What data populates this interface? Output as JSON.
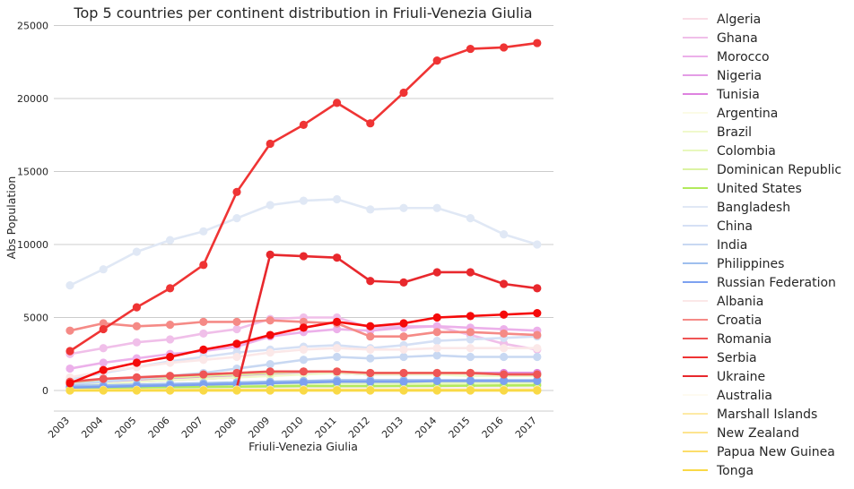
{
  "chart_data": {
    "type": "line",
    "title": "Top 5 countries per continent distribution in Friuli-Venezia Giulia",
    "xlabel": "Friuli-Venezia Giulia",
    "ylabel": "Abs Population",
    "ylim": [
      -1400,
      25000
    ],
    "yticks": [
      0,
      5000,
      10000,
      15000,
      20000,
      25000
    ],
    "grid": "horizontal",
    "legend_position": "right",
    "categories": [
      "2003",
      "2004",
      "2005",
      "2006",
      "2007",
      "2008",
      "2009",
      "2010",
      "2011",
      "2012",
      "2013",
      "2014",
      "2015",
      "2016",
      "2017"
    ],
    "series": [
      {
        "name": "Algeria",
        "color": "#f9dde6",
        "values": [
          60,
          70,
          80,
          90,
          100,
          110,
          120,
          130,
          140,
          130,
          130,
          140,
          140,
          140,
          140
        ]
      },
      {
        "name": "Ghana",
        "color": "#f0bfe9",
        "values": [
          2500,
          2900,
          3300,
          3500,
          3900,
          4200,
          4900,
          5000,
          5000,
          4300,
          4400,
          4400,
          3800,
          3200,
          2800
        ]
      },
      {
        "name": "Morocco",
        "color": "#ecb0ea",
        "values": [
          1500,
          1900,
          2200,
          2500,
          2700,
          3000,
          3700,
          4000,
          4200,
          4100,
          4300,
          4400,
          4300,
          4200,
          4100
        ]
      },
      {
        "name": "Nigeria",
        "color": "#e49de6",
        "values": [
          400,
          500,
          600,
          700,
          800,
          900,
          1100,
          1200,
          1200,
          1100,
          1100,
          1100,
          1100,
          1100,
          1100
        ]
      },
      {
        "name": "Tunisia",
        "color": "#de82e0",
        "values": [
          300,
          500,
          650,
          800,
          900,
          1000,
          1200,
          1300,
          1200,
          1100,
          1100,
          1200,
          1200,
          1200,
          1200
        ]
      },
      {
        "name": "Argentina",
        "color": "#fbfbe6",
        "values": [
          100,
          150,
          200,
          250,
          300,
          350,
          400,
          400,
          400,
          400,
          400,
          400,
          400,
          400,
          400
        ]
      },
      {
        "name": "Brazil",
        "color": "#f0f9cc",
        "values": [
          300,
          450,
          600,
          700,
          800,
          900,
          1000,
          1100,
          1200,
          1100,
          1100,
          1100,
          1000,
          1000,
          1000
        ]
      },
      {
        "name": "Colombia",
        "color": "#e8f8bd",
        "values": [
          100,
          150,
          200,
          250,
          300,
          350,
          400,
          450,
          500,
          500,
          500,
          500,
          500,
          500,
          500
        ]
      },
      {
        "name": "Dominican Republic",
        "color": "#dbf3a3",
        "values": [
          500,
          700,
          800,
          900,
          1000,
          1100,
          1200,
          1300,
          1300,
          1200,
          1200,
          1200,
          1200,
          1100,
          1100
        ]
      },
      {
        "name": "United States",
        "color": "#b2ea5c",
        "values": [
          150,
          180,
          200,
          220,
          240,
          260,
          280,
          300,
          300,
          300,
          310,
          320,
          330,
          340,
          350
        ]
      },
      {
        "name": "Bangladesh",
        "color": "#e0e8f5",
        "values": [
          7200,
          8300,
          9500,
          10300,
          10900,
          11800,
          12700,
          13000,
          13100,
          12400,
          12500,
          12500,
          11800,
          10700,
          10000
        ]
      },
      {
        "name": "China",
        "color": "#d5e0f5",
        "values": [
          800,
          1200,
          1600,
          2000,
          2300,
          2600,
          2800,
          3000,
          3100,
          2900,
          3100,
          3400,
          3500,
          3600,
          3700
        ]
      },
      {
        "name": "India",
        "color": "#c8d8f2",
        "values": [
          400,
          600,
          800,
          1000,
          1200,
          1500,
          1800,
          2100,
          2300,
          2200,
          2300,
          2400,
          2300,
          2300,
          2300
        ]
      },
      {
        "name": "Philippines",
        "color": "#9fbfee",
        "values": [
          300,
          350,
          400,
          450,
          500,
          550,
          600,
          650,
          700,
          700,
          700,
          700,
          700,
          700,
          700
        ]
      },
      {
        "name": "Russian Federation",
        "color": "#7da1f0",
        "values": [
          200,
          250,
          300,
          350,
          400,
          450,
          500,
          550,
          600,
          600,
          600,
          650,
          650,
          650,
          650
        ]
      },
      {
        "name": "Albania",
        "color": "#fbe8e8",
        "values": [
          900,
          1300,
          1600,
          1900,
          2100,
          2300,
          2600,
          2800,
          2900,
          2800,
          2800,
          2900,
          2900,
          2900,
          2900
        ]
      },
      {
        "name": "Croatia",
        "color": "#f58a86",
        "values": [
          4100,
          4600,
          4400,
          4500,
          4700,
          4700,
          4800,
          4700,
          4600,
          3700,
          3700,
          4000,
          4000,
          3900,
          3800
        ]
      },
      {
        "name": "Romania",
        "color": "#ef5555",
        "values": [
          600,
          800,
          900,
          1000,
          1100,
          1200,
          1300,
          1300,
          1300,
          1200,
          1200,
          1200,
          1200,
          1100,
          1100
        ]
      },
      {
        "name": "Serbia",
        "color": "#ef3434",
        "values": [
          2700,
          4200,
          5700,
          7000,
          8600,
          13600,
          16900,
          18200,
          19700,
          18300,
          20400,
          22600,
          23400,
          23500,
          23800
        ]
      },
      {
        "name": "Ukraine",
        "color": "#e8282d",
        "values": [
          null,
          null,
          null,
          null,
          null,
          200,
          9300,
          9200,
          9100,
          7500,
          7400,
          8100,
          8100,
          7300,
          7000
        ]
      },
      {
        "name": "Australia",
        "color": "#fefbf0",
        "values": [
          40,
          45,
          50,
          55,
          60,
          65,
          70,
          75,
          80,
          80,
          80,
          80,
          80,
          80,
          80
        ]
      },
      {
        "name": "Marshall Islands",
        "color": "#fdeaa6",
        "values": [
          10,
          10,
          10,
          10,
          10,
          10,
          10,
          10,
          10,
          10,
          10,
          10,
          10,
          10,
          10
        ]
      },
      {
        "name": "New Zealand",
        "color": "#fde48f",
        "values": [
          30,
          30,
          35,
          35,
          40,
          40,
          45,
          45,
          45,
          45,
          45,
          45,
          45,
          45,
          45
        ]
      },
      {
        "name": "Papua New Guinea",
        "color": "#fcdd6a",
        "values": [
          5,
          5,
          5,
          5,
          5,
          5,
          5,
          5,
          5,
          5,
          5,
          5,
          5,
          5,
          5
        ]
      },
      {
        "name": "Tonga",
        "color": "#f9d946",
        "values": [
          0,
          0,
          0,
          0,
          0,
          0,
          0,
          0,
          0,
          0,
          0,
          0,
          0,
          0,
          0
        ]
      },
      {
        "name": "",
        "color": "#f50a0a",
        "values": [
          500,
          1400,
          1900,
          2300,
          2800,
          3200,
          3800,
          4300,
          4700,
          4400,
          4600,
          5000,
          5100,
          5200,
          5300
        ]
      }
    ]
  }
}
